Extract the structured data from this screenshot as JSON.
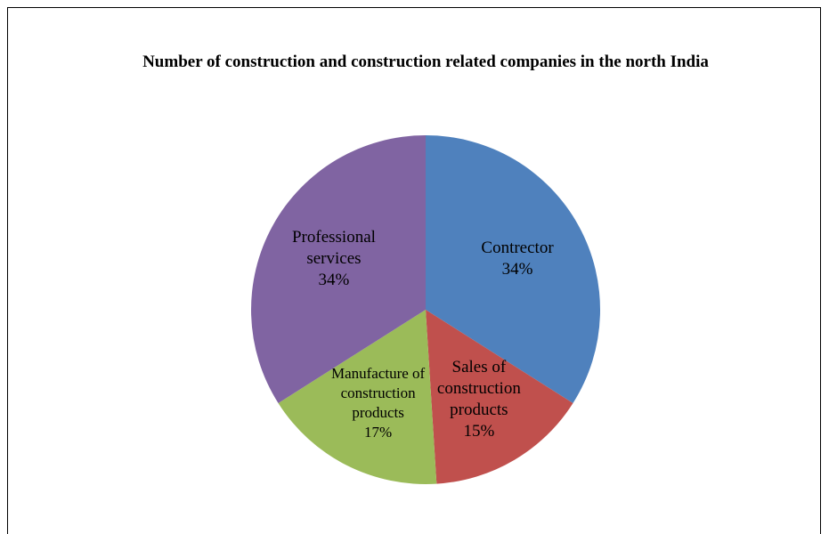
{
  "chart_data": {
    "type": "pie",
    "title": "Number of construction and construction related companies in the north India",
    "categories": [
      "Contrector",
      "Sales of construction products",
      "Manufacture of construction products",
      "Professional services"
    ],
    "values": [
      34,
      15,
      17,
      34
    ],
    "value_labels": [
      "34%",
      "15%",
      "17%",
      "34%"
    ],
    "colors": [
      "#4f81bd",
      "#c0504d",
      "#9bbb59",
      "#8064a2"
    ]
  }
}
